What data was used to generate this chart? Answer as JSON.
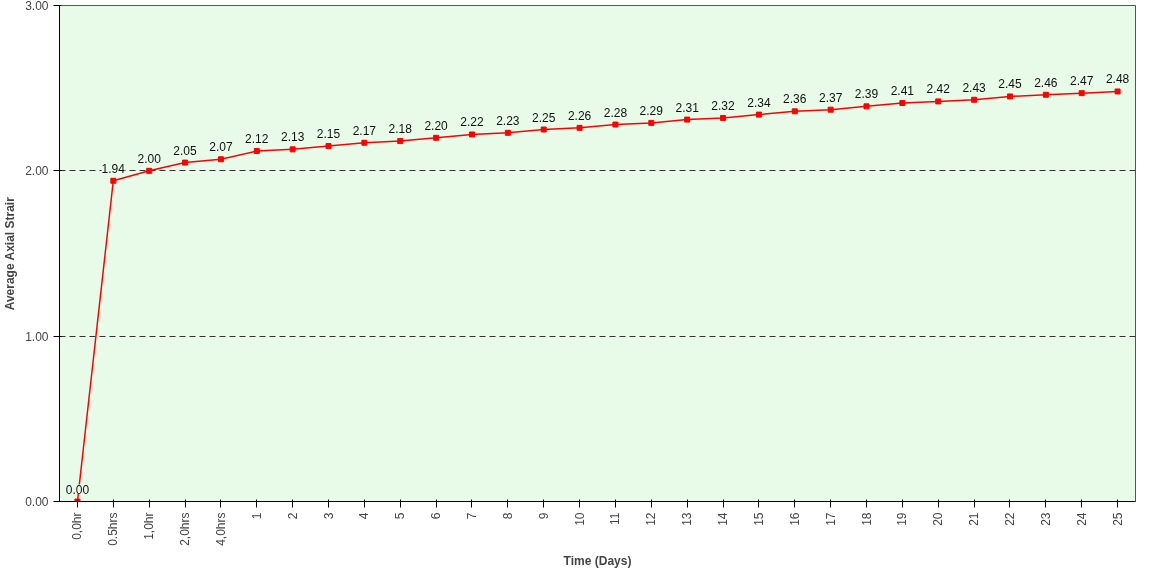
{
  "chart_data": {
    "type": "line",
    "xlabel": "Time (Days)",
    "ylabel": "Average Axial Strair",
    "categories": [
      "0,0hr",
      "0.5hrs",
      "1,0hr",
      "2,0hrs",
      "4,0hrs",
      "1",
      "2",
      "3",
      "4",
      "5",
      "6",
      "7",
      "8",
      "9",
      "10",
      "11",
      "12",
      "13",
      "14",
      "15",
      "16",
      "17",
      "18",
      "19",
      "20",
      "21",
      "22",
      "23",
      "24",
      "25"
    ],
    "series": [
      {
        "color": "#ff0000",
        "values": [
          0.0,
          1.94,
          2.0,
          2.05,
          2.07,
          2.12,
          2.13,
          2.15,
          2.17,
          2.18,
          2.2,
          2.22,
          2.23,
          2.25,
          2.26,
          2.28,
          2.29,
          2.31,
          2.32,
          2.34,
          2.36,
          2.37,
          2.39,
          2.41,
          2.42,
          2.43,
          2.45,
          2.46,
          2.47,
          2.48
        ],
        "value_labels": [
          "0.00",
          "1.94",
          "2.00",
          "2.05",
          "2.07",
          "2.12",
          "2.13",
          "2.15",
          "2.17",
          "2.18",
          "2.20",
          "2.22",
          "2.23",
          "2.25",
          "2.26",
          "2.28",
          "2.29",
          "2.31",
          "2.32",
          "2.34",
          "2.36",
          "2.37",
          "2.39",
          "2.41",
          "2.42",
          "2.43",
          "2.45",
          "2.46",
          "2.47",
          "2.48"
        ]
      }
    ],
    "ylim": [
      0,
      3
    ],
    "yticks": [
      {
        "value": 0,
        "label": "0.00"
      },
      {
        "value": 1,
        "label": "1.00"
      },
      {
        "value": 2,
        "label": "2.00"
      },
      {
        "value": 3,
        "label": "3.00"
      }
    ],
    "grid": "y",
    "marker": "square",
    "line_style": "solid"
  }
}
